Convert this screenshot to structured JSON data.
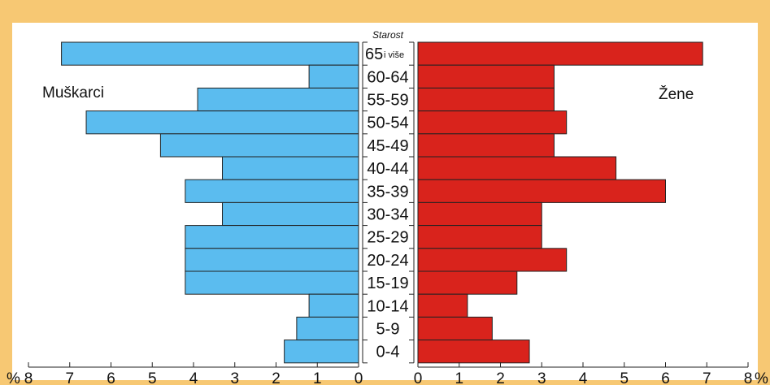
{
  "chart_data": {
    "type": "bar",
    "orientation": "horizontal-pyramid",
    "categories": [
      "0-4",
      "5-9",
      "10-14",
      "15-19",
      "20-24",
      "25-29",
      "30-34",
      "35-39",
      "40-44",
      "45-49",
      "50-54",
      "55-59",
      "60-64",
      "65"
    ],
    "top_category_suffix": "i više",
    "axis_title": "Starost",
    "series": [
      {
        "name": "Muškarci",
        "side": "left",
        "color": "#5bbcef",
        "values": [
          1.8,
          1.5,
          1.2,
          4.2,
          4.2,
          4.2,
          3.3,
          4.2,
          3.3,
          4.8,
          6.6,
          3.9,
          1.2,
          7.2
        ]
      },
      {
        "name": "Žene",
        "side": "right",
        "color": "#d9231c",
        "values": [
          2.7,
          1.8,
          1.2,
          2.4,
          3.6,
          3.0,
          3.0,
          6.0,
          4.8,
          3.3,
          3.6,
          3.3,
          3.3,
          6.9
        ]
      }
    ],
    "left_ticks": [
      "8",
      "7",
      "6",
      "5",
      "4",
      "3",
      "2",
      "1",
      "0"
    ],
    "right_ticks": [
      "0",
      "1",
      "2",
      "3",
      "4",
      "5",
      "6",
      "7",
      "8"
    ],
    "left_unit": "%",
    "right_unit": "%",
    "xlim": [
      0,
      8
    ],
    "grid": false,
    "legend": "none"
  },
  "colors": {
    "background": "#f7c873",
    "panel": "#ffffff",
    "male": "#5bbcef",
    "female": "#d9231c",
    "stroke": "#222222"
  }
}
